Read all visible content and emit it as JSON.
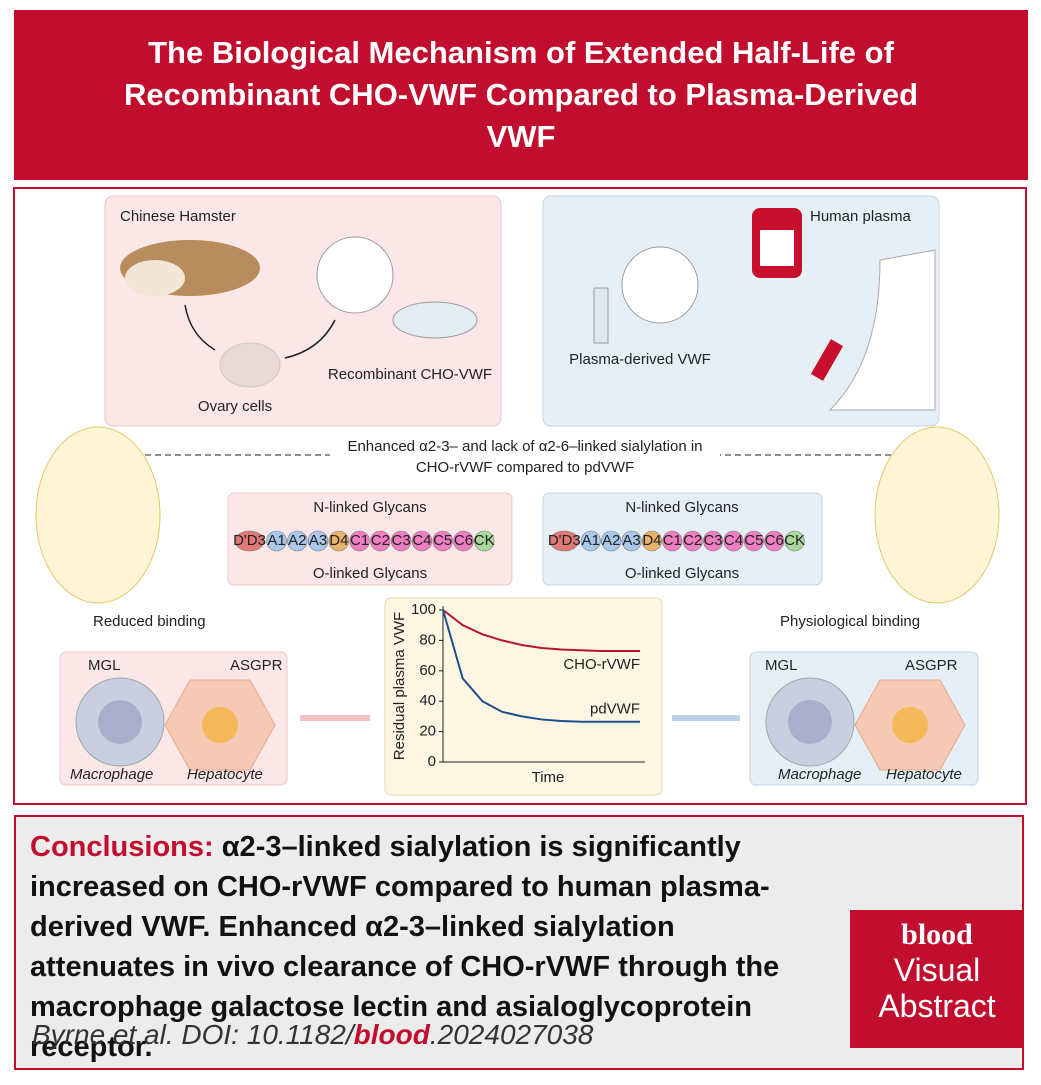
{
  "header": {
    "title": "The Biological Mechanism of Extended Half-Life of Recombinant CHO-VWF Compared to Plasma-Derived VWF"
  },
  "left_panel": {
    "source": "Chinese Hamster",
    "cells": "Ovary cells",
    "product": "Recombinant CHO-VWF"
  },
  "right_panel": {
    "source": "Human plasma",
    "product": "Plasma-derived VWF"
  },
  "comparison_note": "Enhanced α2-3– and lack of α2-6–linked sialylation in CHO-rVWF compared to pdVWF",
  "vwf": {
    "n_glycans": "N-linked Glycans",
    "o_glycans": "O-linked Glycans",
    "domains": [
      "D'D3",
      "A1",
      "A2",
      "A3",
      "D4",
      "C1",
      "C2",
      "C3",
      "C4",
      "C5",
      "C6",
      "CK"
    ]
  },
  "binding": {
    "left": "Reduced binding",
    "right": "Physiological binding"
  },
  "cells": {
    "receptor_1": "MGL",
    "receptor_2": "ASGPR",
    "cell_1": "Macrophage",
    "cell_2": "Hepatocyte"
  },
  "chart_data": {
    "type": "line",
    "ylabel": "Residual plasma VWF",
    "xlabel": "Time",
    "ylim": [
      0,
      100
    ],
    "yticks": [
      0,
      20,
      40,
      60,
      80,
      100
    ],
    "series": [
      {
        "name": "CHO-rVWF",
        "color": "#b5172f",
        "values": [
          100,
          90,
          84,
          80,
          77,
          75,
          74,
          73.5,
          73,
          73,
          73
        ]
      },
      {
        "name": "pdVWF",
        "color": "#1f4e8c",
        "values": [
          100,
          55,
          40,
          33,
          30,
          28,
          27,
          26.5,
          26.5,
          26.5,
          26.5
        ]
      }
    ]
  },
  "conclusions": {
    "label": "Conclusions:",
    "text": "α2-3–linked sialylation is significantly increased on CHO-rVWF compared to human plasma-derived VWF. Enhanced α2-3–linked sialylation attenuates in vivo clearance of CHO-rVWF through the macrophage galactose lectin and asialoglycoprotein receptor."
  },
  "citation": {
    "prefix": "Byrne et al. DOI: 10.1182/",
    "journal": "blood",
    "suffix": ".2024027038"
  },
  "logo": {
    "journal": "blood",
    "line1": "Visual",
    "line2": "Abstract"
  }
}
